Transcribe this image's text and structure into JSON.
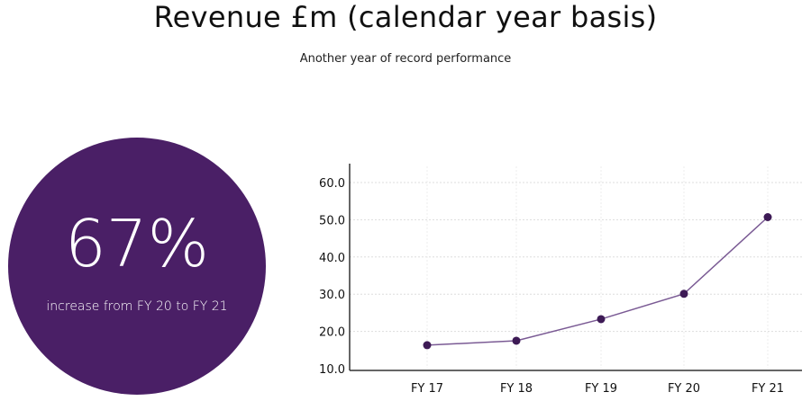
{
  "title": "Revenue £m (calendar year basis)",
  "subtitle": "Another year of record performance",
  "highlight": {
    "value": "67%",
    "caption": "increase from FY 20 to FY 21",
    "color": "#4a1f66"
  },
  "chart_data": {
    "type": "line",
    "categories": [
      "FY 17",
      "FY 18",
      "FY 19",
      "FY 20",
      "FY 21"
    ],
    "values": [
      16.3,
      17.5,
      23.3,
      30.1,
      50.7
    ],
    "yticks": [
      "10.0",
      "20.0",
      "30.0",
      "40.0",
      "50.0",
      "60.0"
    ],
    "ylim": [
      10,
      60
    ],
    "grid": true,
    "line_color": "#7a5a94",
    "marker_color": "#3d1a55"
  }
}
